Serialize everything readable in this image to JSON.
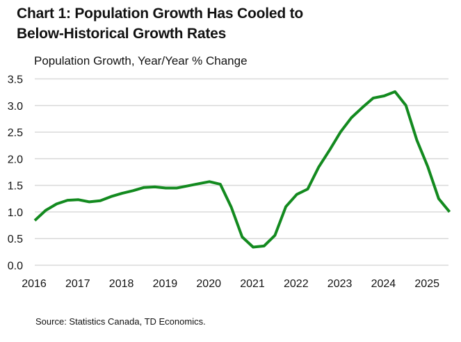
{
  "header": {
    "title_line1": "Chart 1: Population Growth Has Cooled to",
    "title_line2": "Below-Historical Growth Rates"
  },
  "footer": {
    "source": "Source: Statistics Canada, TD Economics."
  },
  "colors": {
    "line": "#138a1f",
    "grid": "#d9d9d9"
  },
  "chart_data": {
    "type": "line",
    "title": "Chart 1: Population Growth Has Cooled to Below-Historical Growth Rates",
    "subtitle": "Population Growth, Year/Year % Change",
    "xlabel": "",
    "ylabel": "Population Growth, Year/Year % Change",
    "frequency": "quarterly",
    "x": [
      "2016Q1",
      "2016Q2",
      "2016Q3",
      "2016Q4",
      "2017Q1",
      "2017Q2",
      "2017Q3",
      "2017Q4",
      "2018Q1",
      "2018Q2",
      "2018Q3",
      "2018Q4",
      "2019Q1",
      "2019Q2",
      "2019Q3",
      "2019Q4",
      "2020Q1",
      "2020Q2",
      "2020Q3",
      "2020Q4",
      "2021Q1",
      "2021Q2",
      "2021Q3",
      "2021Q4",
      "2022Q1",
      "2022Q2",
      "2022Q3",
      "2022Q4",
      "2023Q1",
      "2023Q2",
      "2023Q3",
      "2023Q4",
      "2024Q1",
      "2024Q2",
      "2024Q3",
      "2024Q4",
      "2025Q1",
      "2025Q2",
      "2025Q3"
    ],
    "series": [
      {
        "name": "Population Growth",
        "values": [
          0.84,
          1.03,
          1.15,
          1.22,
          1.23,
          1.19,
          1.21,
          1.29,
          1.35,
          1.4,
          1.46,
          1.47,
          1.45,
          1.45,
          1.49,
          1.53,
          1.57,
          1.52,
          1.09,
          0.53,
          0.34,
          0.36,
          0.56,
          1.1,
          1.33,
          1.43,
          1.84,
          2.16,
          2.5,
          2.77,
          2.96,
          3.14,
          3.18,
          3.26,
          3.0,
          2.35,
          1.85,
          1.25,
          1.0
        ]
      }
    ],
    "x_tick_labels": [
      "2016",
      "2017",
      "2018",
      "2019",
      "2020",
      "2021",
      "2022",
      "2023",
      "2024",
      "2025"
    ],
    "y_tick_labels": [
      "0.0",
      "0.5",
      "1.0",
      "1.5",
      "2.0",
      "2.5",
      "3.0",
      "3.5"
    ],
    "y_ticks": [
      0.0,
      0.5,
      1.0,
      1.5,
      2.0,
      2.5,
      3.0,
      3.5
    ],
    "ylim": [
      0,
      3.5
    ],
    "grid": "horizontal",
    "legend": "none"
  }
}
